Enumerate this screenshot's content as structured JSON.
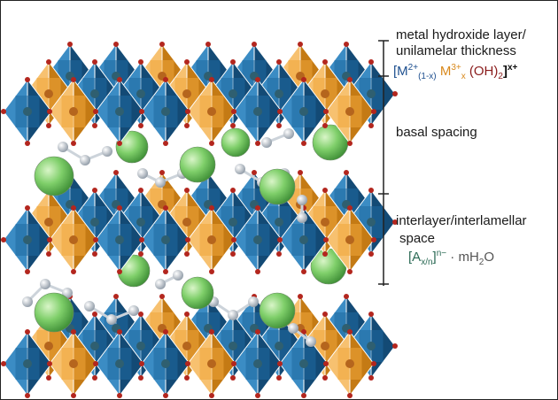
{
  "labels": {
    "layer": [
      "metal hydroxide layer/",
      "unilamelar thickness"
    ],
    "basal": "basal spacing",
    "interlayer": [
      "interlayer/interlamellar",
      "space"
    ]
  },
  "layer_formula": [
    "[M",
    "2+",
    "(1-x)",
    "M",
    "3+",
    "x",
    "(OH)",
    "2",
    "]",
    "x+"
  ],
  "anion_formula": [
    "[A",
    "x/n",
    "]",
    "n−",
    "· mH",
    "2",
    "O"
  ]
}
